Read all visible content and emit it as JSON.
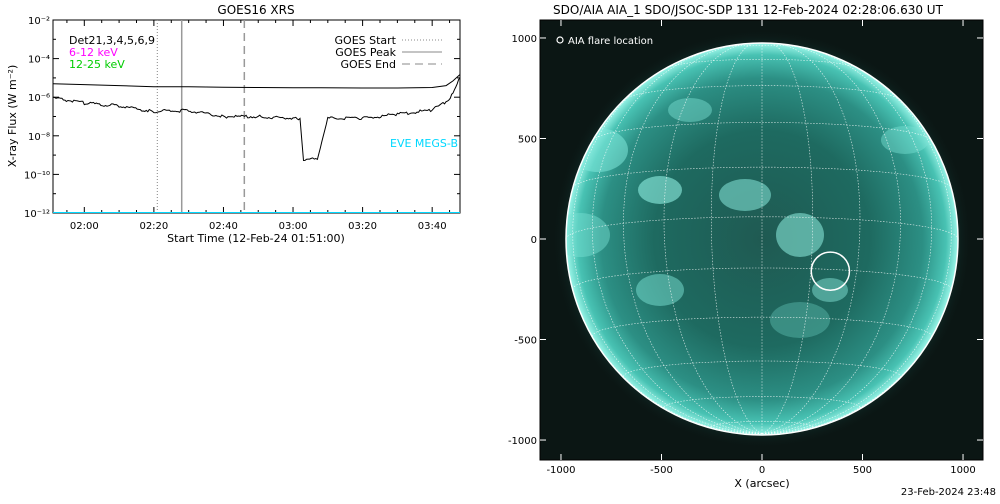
{
  "chart_data": [
    {
      "type": "line",
      "title": "GOES16 XRS",
      "xlabel": "Start Time (12-Feb-24 01:51:00)",
      "ylabel": "X-ray Flux (W m⁻²)",
      "y_scale": "log",
      "ylim": [
        1e-12,
        0.01
      ],
      "xlim": [
        "01:51",
        "03:48"
      ],
      "x_tick_labels": [
        "02:00",
        "02:20",
        "02:40",
        "03:00",
        "03:20",
        "03:40"
      ],
      "y_tick_labels": [
        "10⁻¹²",
        "10⁻¹⁰",
        "10⁻⁸",
        "10⁻⁶",
        "10⁻⁴",
        "10⁻²"
      ],
      "detector_label": "Det21,3,4,5,6,9",
      "channel_labels": [
        {
          "text": "6-12 keV",
          "color": "#ff00ff"
        },
        {
          "text": "12-25 keV",
          "color": "#00ff00"
        }
      ],
      "legend_position": "top-right",
      "legend": [
        "GOES Start",
        "GOES Peak",
        "GOES End"
      ],
      "eve_label": "EVE MEGS-B",
      "markers": {
        "goes_start": "02:21",
        "goes_peak": "02:28",
        "goes_end": "02:46"
      },
      "series": [
        {
          "name": "",
          "color": "#000000",
          "x": [
            "01:51",
            "02:00",
            "02:10",
            "02:20",
            "02:30",
            "02:40",
            "02:50",
            "03:00",
            "03:02",
            "03:04",
            "03:08",
            "03:20",
            "03:30",
            "03:40",
            "03:44",
            "03:46",
            "03:48"
          ],
          "y": [
            5e-06,
            4.5e-06,
            4e-06,
            3.5e-06,
            3.5e-06,
            3.3e-06,
            3.2e-06,
            3.1e-06,
            3.1e-06,
            3.1e-06,
            3.1e-06,
            3e-06,
            3e-06,
            3.2e-06,
            4e-06,
            7e-06,
            1.5e-05
          ]
        },
        {
          "name": "",
          "color": "#000000",
          "x": [
            "01:51",
            "02:00",
            "02:10",
            "02:20",
            "02:24",
            "02:30",
            "02:40",
            "02:50",
            "03:00",
            "03:02",
            "03:03",
            "03:07",
            "03:10",
            "03:20",
            "03:30",
            "03:40",
            "03:44",
            "03:46",
            "03:48"
          ],
          "y": [
            9e-07,
            5e-07,
            3.5e-07,
            1.8e-07,
            2e-07,
            2e-07,
            1e-07,
            1e-07,
            8e-08,
            8e-08,
            6e-10,
            6e-10,
            8e-08,
            8e-08,
            1.3e-07,
            2.2e-07,
            6e-07,
            1.5e-06,
            1e-05
          ]
        },
        {
          "name": "",
          "color": "#00d8ff",
          "x": [
            "01:51",
            "03:48"
          ],
          "y": [
            1e-12,
            1e-12
          ]
        }
      ]
    },
    {
      "type": "image",
      "title": "SDO/AIA AIA_1 SDO/JSOC-SDP 131 12-Feb-2024 02:28:06.630 UT",
      "xlabel": "X (arcsec)",
      "ylabel": "",
      "xlim": [
        -1100,
        1100
      ],
      "ylim": [
        -1100,
        1100
      ],
      "x_tick_labels": [
        "-1000",
        "-500",
        "0",
        "500",
        "1000"
      ],
      "y_tick_labels": [
        "-1000",
        "-500",
        "0",
        "500",
        "1000"
      ],
      "legend": "AIA flare location",
      "legend_position": "top-left",
      "flare_location": {
        "x": 340,
        "y": -160,
        "radius": 95
      },
      "solar_radius": 975
    }
  ],
  "footer_timestamp": "23-Feb-2024 23:48"
}
